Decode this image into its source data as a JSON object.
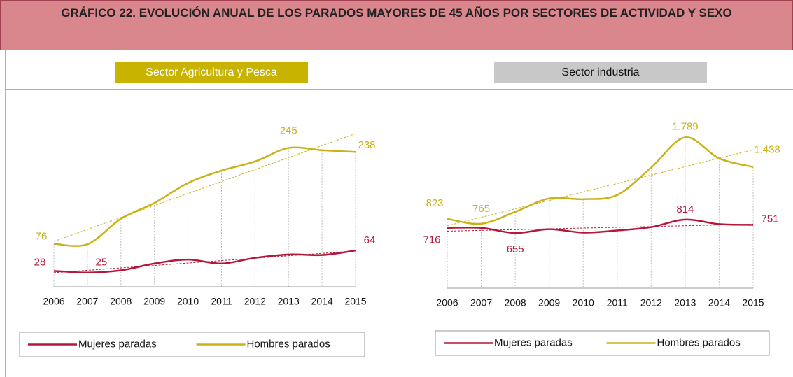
{
  "title": "GRÁFICO 22. EVOLUCIÓN ANUAL DE LOS PARADOS MAYORES DE 45 AÑOS POR SECTORES DE ACTIVIDAD Y SEXO",
  "chart_data": [
    {
      "type": "line",
      "title": "Sector Agricultura y Pesca",
      "categories": [
        "2006",
        "2007",
        "2008",
        "2009",
        "2010",
        "2011",
        "2012",
        "2013",
        "2014",
        "2015"
      ],
      "ylim": [
        0,
        300
      ],
      "series": [
        {
          "name": "Mujeres paradas",
          "color": "#b5173a",
          "values": [
            28,
            25,
            29,
            41,
            48,
            41,
            51,
            57,
            56,
            64
          ],
          "value_labels": [
            "28",
            "25",
            null,
            null,
            null,
            null,
            null,
            null,
            null,
            "64"
          ]
        },
        {
          "name": "Hombres parados",
          "color": "#c8b218",
          "values": [
            76,
            75,
            120,
            148,
            183,
            205,
            221,
            245,
            241,
            238
          ],
          "value_labels": [
            "76",
            null,
            null,
            null,
            null,
            null,
            null,
            "245",
            null,
            "238"
          ]
        }
      ]
    },
    {
      "type": "line",
      "title": "Sector industria",
      "categories": [
        "2006",
        "2007",
        "2008",
        "2009",
        "2010",
        "2011",
        "2012",
        "2013",
        "2014",
        "2015"
      ],
      "ylim": [
        0,
        2000
      ],
      "series": [
        {
          "name": "Mujeres paradas",
          "color": "#b5173a",
          "values": [
            716,
            716,
            655,
            700,
            660,
            685,
            725,
            814,
            760,
            751
          ],
          "value_labels": [
            "716",
            null,
            "655",
            null,
            null,
            null,
            null,
            "814",
            null,
            "751"
          ]
        },
        {
          "name": "Hombres parados",
          "color": "#c8b218",
          "values": [
            823,
            765,
            906,
            1065,
            1056,
            1106,
            1431,
            1789,
            1540,
            1438
          ],
          "value_labels": [
            "823",
            "765",
            null,
            null,
            null,
            null,
            null,
            "1.789",
            null,
            "1.438"
          ]
        }
      ]
    }
  ]
}
